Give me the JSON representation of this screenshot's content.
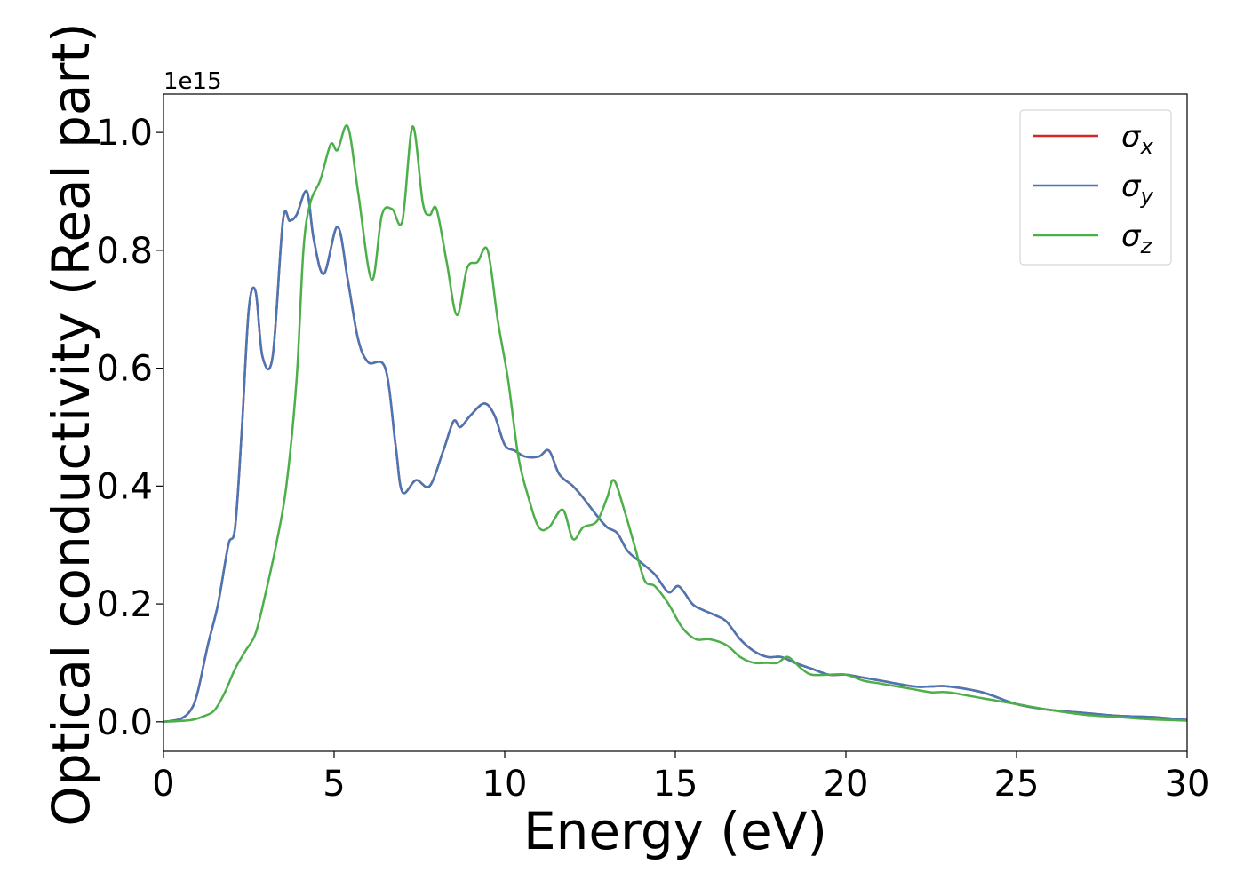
{
  "chart_data": {
    "type": "line",
    "xlabel": "Energy (eV)",
    "ylabel": "Optical conductivity (Real part)",
    "y_offset_label": "1e15",
    "xlim": [
      0,
      30
    ],
    "ylim": [
      -0.05,
      1.065
    ],
    "y_unit_scale": 1000000000000000.0,
    "xticks": [
      0,
      5,
      10,
      15,
      20,
      25,
      30
    ],
    "xtick_labels": [
      "0",
      "5",
      "10",
      "15",
      "20",
      "25",
      "30"
    ],
    "yticks": [
      0.0,
      0.2,
      0.4,
      0.6,
      0.8,
      1.0
    ],
    "ytick_labels": [
      "0.0",
      "0.2",
      "0.4",
      "0.6",
      "0.8",
      "1.0"
    ],
    "grid": false,
    "legend_position": "top-right",
    "series": [
      {
        "name": "σx",
        "symbol": "σ",
        "subscript": "x",
        "color": "#d62728",
        "x": [
          0,
          0.5,
          0.8,
          1.0,
          1.3,
          1.6,
          1.9,
          2.1,
          2.3,
          2.5,
          2.7,
          2.9,
          3.2,
          3.5,
          3.7,
          3.9,
          4.2,
          4.4,
          4.7,
          5.1,
          5.4,
          5.7,
          6.0,
          6.5,
          6.8,
          7.0,
          7.4,
          7.8,
          8.2,
          8.5,
          8.7,
          9.0,
          9.4,
          9.7,
          10.0,
          10.3,
          10.6,
          11.0,
          11.3,
          11.6,
          12.0,
          12.3,
          12.7,
          13.0,
          13.3,
          13.6,
          14.0,
          14.4,
          14.8,
          15.1,
          15.5,
          15.8,
          16.2,
          16.5,
          16.9,
          17.3,
          17.7,
          18.1,
          18.5,
          19.0,
          19.5,
          20.0,
          20.5,
          21.0,
          22.0,
          22.5,
          23.0,
          24.0,
          25.0,
          26.0,
          27.0,
          28.0,
          29.0,
          30.0
        ],
        "values": [
          0.0,
          0.005,
          0.02,
          0.05,
          0.13,
          0.2,
          0.3,
          0.33,
          0.5,
          0.7,
          0.73,
          0.62,
          0.62,
          0.85,
          0.85,
          0.86,
          0.9,
          0.82,
          0.76,
          0.84,
          0.75,
          0.65,
          0.61,
          0.6,
          0.47,
          0.39,
          0.41,
          0.4,
          0.46,
          0.51,
          0.5,
          0.52,
          0.54,
          0.52,
          0.47,
          0.46,
          0.45,
          0.45,
          0.46,
          0.42,
          0.4,
          0.38,
          0.35,
          0.33,
          0.32,
          0.29,
          0.27,
          0.25,
          0.22,
          0.23,
          0.2,
          0.19,
          0.18,
          0.17,
          0.14,
          0.12,
          0.11,
          0.11,
          0.1,
          0.09,
          0.08,
          0.08,
          0.075,
          0.07,
          0.06,
          0.06,
          0.06,
          0.05,
          0.03,
          0.02,
          0.015,
          0.01,
          0.008,
          0.003
        ]
      },
      {
        "name": "σy",
        "symbol": "σ",
        "subscript": "y",
        "color": "#4a76b4",
        "x": [
          0,
          0.5,
          0.8,
          1.0,
          1.3,
          1.6,
          1.9,
          2.1,
          2.3,
          2.5,
          2.7,
          2.9,
          3.2,
          3.5,
          3.7,
          3.9,
          4.2,
          4.4,
          4.7,
          5.1,
          5.4,
          5.7,
          6.0,
          6.5,
          6.8,
          7.0,
          7.4,
          7.8,
          8.2,
          8.5,
          8.7,
          9.0,
          9.4,
          9.7,
          10.0,
          10.3,
          10.6,
          11.0,
          11.3,
          11.6,
          12.0,
          12.3,
          12.7,
          13.0,
          13.3,
          13.6,
          14.0,
          14.4,
          14.8,
          15.1,
          15.5,
          15.8,
          16.2,
          16.5,
          16.9,
          17.3,
          17.7,
          18.1,
          18.5,
          19.0,
          19.5,
          20.0,
          20.5,
          21.0,
          22.0,
          22.5,
          23.0,
          24.0,
          25.0,
          26.0,
          27.0,
          28.0,
          29.0,
          30.0
        ],
        "values": [
          0.0,
          0.005,
          0.02,
          0.05,
          0.13,
          0.2,
          0.3,
          0.33,
          0.5,
          0.7,
          0.73,
          0.62,
          0.62,
          0.85,
          0.85,
          0.86,
          0.9,
          0.82,
          0.76,
          0.84,
          0.75,
          0.65,
          0.61,
          0.6,
          0.47,
          0.39,
          0.41,
          0.4,
          0.46,
          0.51,
          0.5,
          0.52,
          0.54,
          0.52,
          0.47,
          0.46,
          0.45,
          0.45,
          0.46,
          0.42,
          0.4,
          0.38,
          0.35,
          0.33,
          0.32,
          0.29,
          0.27,
          0.25,
          0.22,
          0.23,
          0.2,
          0.19,
          0.18,
          0.17,
          0.14,
          0.12,
          0.11,
          0.11,
          0.1,
          0.09,
          0.08,
          0.08,
          0.075,
          0.07,
          0.06,
          0.06,
          0.06,
          0.05,
          0.03,
          0.02,
          0.015,
          0.01,
          0.008,
          0.003
        ]
      },
      {
        "name": "σz",
        "symbol": "σ",
        "subscript": "z",
        "color": "#4daf4a",
        "x": [
          0,
          0.8,
          1.2,
          1.5,
          1.8,
          2.1,
          2.4,
          2.7,
          3.0,
          3.3,
          3.6,
          3.9,
          4.1,
          4.3,
          4.6,
          4.9,
          5.1,
          5.4,
          5.7,
          6.1,
          6.4,
          6.7,
          7.0,
          7.3,
          7.6,
          7.8,
          8.0,
          8.3,
          8.6,
          8.9,
          9.2,
          9.5,
          9.8,
          10.1,
          10.4,
          10.7,
          11.0,
          11.3,
          11.7,
          12.0,
          12.3,
          12.7,
          13.0,
          13.2,
          13.5,
          13.8,
          14.1,
          14.4,
          14.8,
          15.2,
          15.6,
          16.0,
          16.5,
          16.9,
          17.3,
          17.7,
          18.0,
          18.3,
          18.7,
          19.0,
          19.5,
          20.0,
          20.5,
          21.0,
          21.5,
          22.0,
          22.5,
          23.0,
          24.0,
          25.0,
          26.0,
          27.0,
          28.0,
          29.0,
          30.0
        ],
        "values": [
          0.0,
          0.003,
          0.01,
          0.02,
          0.05,
          0.09,
          0.12,
          0.15,
          0.22,
          0.3,
          0.4,
          0.58,
          0.8,
          0.88,
          0.92,
          0.98,
          0.97,
          1.01,
          0.9,
          0.75,
          0.86,
          0.87,
          0.85,
          1.01,
          0.88,
          0.86,
          0.87,
          0.78,
          0.69,
          0.77,
          0.78,
          0.8,
          0.68,
          0.58,
          0.45,
          0.38,
          0.33,
          0.33,
          0.36,
          0.31,
          0.33,
          0.34,
          0.38,
          0.41,
          0.36,
          0.3,
          0.24,
          0.23,
          0.2,
          0.16,
          0.14,
          0.14,
          0.13,
          0.11,
          0.1,
          0.1,
          0.1,
          0.11,
          0.09,
          0.08,
          0.08,
          0.08,
          0.07,
          0.065,
          0.06,
          0.055,
          0.05,
          0.05,
          0.04,
          0.03,
          0.02,
          0.012,
          0.008,
          0.004,
          0.002
        ]
      }
    ]
  }
}
